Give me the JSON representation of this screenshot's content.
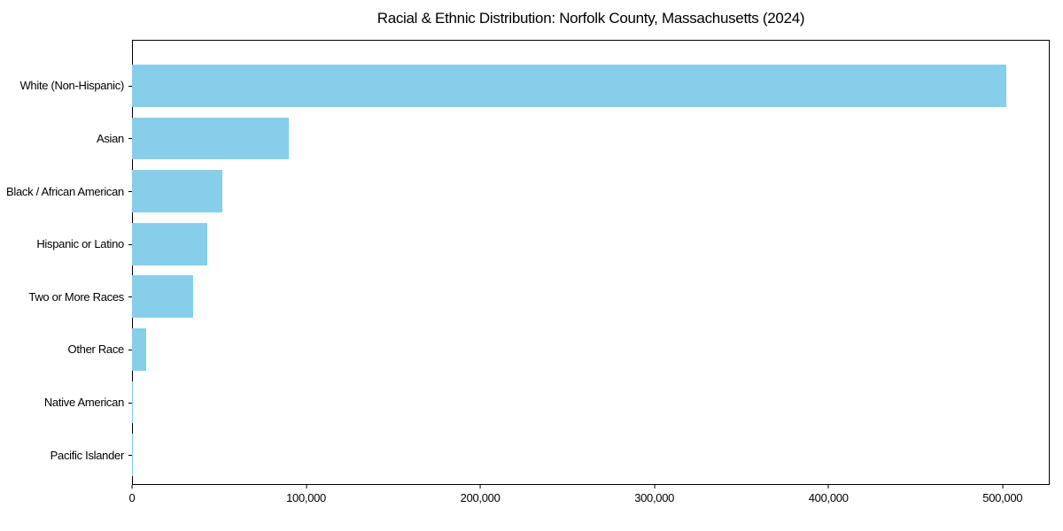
{
  "chart_data": {
    "type": "bar",
    "orientation": "horizontal",
    "title": "Racial & Ethnic Distribution: Norfolk County, Massachusetts (2024)",
    "categories": [
      "White (Non-Hispanic)",
      "Asian",
      "Black / African American",
      "Hispanic or Latino",
      "Two or More Races",
      "Other Race",
      "Native American",
      "Pacific Islander"
    ],
    "values": [
      502000,
      90000,
      52000,
      43000,
      35000,
      8000,
      700,
      200
    ],
    "xlabel": "",
    "ylabel": "",
    "xlim": [
      0,
      527100
    ],
    "x_ticks": [
      0,
      100000,
      200000,
      300000,
      400000,
      500000
    ],
    "x_tick_labels": [
      "0",
      "100,000",
      "200,000",
      "300,000",
      "400,000",
      "500,000"
    ],
    "bar_color": "#87CEEB",
    "axis_color": "#000000",
    "background_color": "#ffffff",
    "grid": false,
    "legend": null
  }
}
